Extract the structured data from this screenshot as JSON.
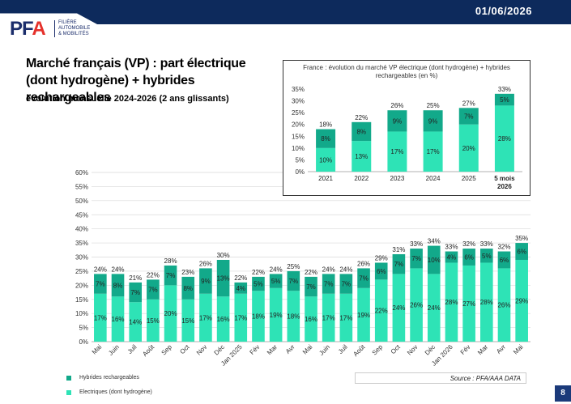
{
  "header": {
    "date": "01/06/2026",
    "logo_letters_pf": "PF",
    "logo_letters_a": "A",
    "logo_tagline": [
      "FILIÈRE",
      "AUTOMOBILE",
      "& MOBILITÉS"
    ]
  },
  "title": "Marché français (VP) : part électrique (dont hydrogène) + hybrides rechargeables",
  "subtitle": "évolution mensuelle 2024-2026 (2 ans glissants)",
  "legend": [
    {
      "label": "Hybrides rechargeables",
      "color": "#12a98a"
    },
    {
      "label": "Electriques (dont hydrogène)",
      "color": "#2ee3b6"
    }
  ],
  "source": "Source : PFA/AAA DATA",
  "page_number": "8",
  "colors": {
    "electric": "#2ee3b6",
    "hybrid": "#12a98a",
    "grid": "#d9d9d9",
    "navy": "#0d2a5c"
  },
  "chart_data": [
    {
      "type": "bar",
      "stacked": true,
      "title": "",
      "xlabel": "",
      "ylabel": "",
      "ylim": [
        0,
        60
      ],
      "yticks": [
        "0%",
        "5%",
        "10%",
        "15%",
        "20%",
        "25%",
        "30%",
        "35%",
        "40%",
        "45%",
        "50%",
        "55%",
        "60%"
      ],
      "grid": true,
      "categories": [
        "Mai",
        "Juin",
        "Juil",
        "Août",
        "Sep",
        "Oct",
        "Nov",
        "Déc",
        "Jan 2025",
        "Fév",
        "Mar",
        "Avr",
        "Mai",
        "Juin",
        "Juil",
        "Août",
        "Sep",
        "Oct",
        "Nov",
        "Déc",
        "Jan 2026",
        "Fév",
        "Mar",
        "Avr",
        "Mai"
      ],
      "series": [
        {
          "name": "Electriques (dont hydrogène)",
          "values": [
            17,
            16,
            14,
            15,
            20,
            15,
            17,
            16,
            17,
            18,
            19,
            18,
            16,
            17,
            17,
            19,
            22,
            24,
            26,
            24,
            28,
            27,
            28,
            26,
            29
          ],
          "labels": [
            "17%",
            "16%",
            "14%",
            "15%",
            "20%",
            "15%",
            "17%",
            "16%",
            "17%",
            "18%",
            "19%",
            "18%",
            "16%",
            "17%",
            "17%",
            "19%",
            "22%",
            "24%",
            "26%",
            "24%",
            "28%",
            "27%",
            "28%",
            "26%",
            "29%"
          ]
        },
        {
          "name": "Hybrides rechargeables",
          "values": [
            7,
            8,
            7,
            7,
            7,
            8,
            9,
            13,
            4,
            5,
            5,
            7,
            7,
            7,
            7,
            7,
            6,
            7,
            7,
            10,
            4,
            6,
            5,
            6,
            6
          ],
          "labels": [
            "7%",
            "8%",
            "7%",
            "7%",
            "7%",
            "8%",
            "9%",
            "13%",
            "4%",
            "5%",
            "5%",
            "7%",
            "7%",
            "7%",
            "7%",
            "7%",
            "6%",
            "7%",
            "7%",
            "10%",
            "4%",
            "6%",
            "5%",
            "6%",
            "6%"
          ]
        }
      ],
      "totals": [
        24,
        24,
        21,
        22,
        28,
        23,
        26,
        30,
        22,
        22,
        24,
        25,
        22,
        24,
        24,
        26,
        29,
        31,
        33,
        34,
        33,
        32,
        33,
        32,
        35
      ],
      "total_labels": [
        "24%",
        "24%",
        "21%",
        "22%",
        "28%",
        "23%",
        "26%",
        "30%",
        "22%",
        "22%",
        "24%",
        "25%",
        "22%",
        "24%",
        "24%",
        "26%",
        "29%",
        "31%",
        "33%",
        "34%",
        "33%",
        "32%",
        "33%",
        "32%",
        "35%"
      ]
    },
    {
      "type": "bar",
      "stacked": true,
      "title": "France : évolution du marché VP électrique (dont hydrogène) + hybrides rechargeables (en %)",
      "ylim": [
        0,
        35
      ],
      "yticks": [
        "0%",
        "5%",
        "10%",
        "15%",
        "20%",
        "25%",
        "30%",
        "35%"
      ],
      "grid": false,
      "categories": [
        "2021",
        "2022",
        "2023",
        "2024",
        "2025",
        "5 mois 2026"
      ],
      "series": [
        {
          "name": "Electriques (dont hydrogène)",
          "values": [
            10,
            13,
            17,
            17,
            20,
            28
          ],
          "labels": [
            "10%",
            "13%",
            "17%",
            "17%",
            "20%",
            "28%"
          ]
        },
        {
          "name": "Hybrides rechargeables",
          "values": [
            8,
            8,
            9,
            9,
            7,
            5
          ],
          "labels": [
            "8%",
            "8%",
            "9%",
            "9%",
            "7%",
            "5%"
          ]
        }
      ],
      "totals": [
        18,
        22,
        26,
        25,
        27,
        33
      ],
      "total_labels": [
        "18%",
        "22%",
        "26%",
        "25%",
        "27%",
        "33%"
      ]
    }
  ]
}
